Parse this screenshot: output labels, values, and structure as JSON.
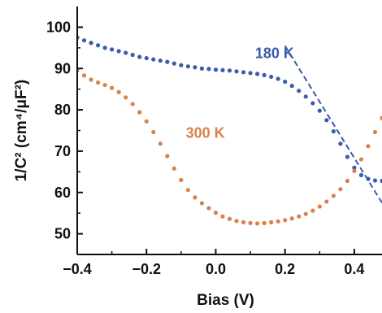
{
  "chart_data": {
    "type": "scatter",
    "xlabel": "Bias (V)",
    "ylabel": "1/C² (cm⁴/μF²)",
    "xlim": [
      -0.4,
      0.48
    ],
    "ylim": [
      45,
      105
    ],
    "x_ticks": [
      "−0.4",
      "−0.2",
      "0.0",
      "0.2",
      "0.4"
    ],
    "x_tick_values": [
      -0.4,
      -0.2,
      0.0,
      0.2,
      0.4
    ],
    "y_ticks": [
      "50",
      "60",
      "70",
      "80",
      "90",
      "100"
    ],
    "y_tick_values": [
      50,
      60,
      70,
      80,
      90,
      100
    ],
    "grid": false,
    "series": [
      {
        "name": "180 K",
        "color": "#3b5bab",
        "x": [
          -0.4,
          -0.38,
          -0.36,
          -0.34,
          -0.32,
          -0.3,
          -0.28,
          -0.26,
          -0.24,
          -0.22,
          -0.2,
          -0.18,
          -0.16,
          -0.14,
          -0.12,
          -0.1,
          -0.08,
          -0.06,
          -0.04,
          -0.02,
          0.0,
          0.02,
          0.04,
          0.06,
          0.08,
          0.1,
          0.12,
          0.14,
          0.16,
          0.18,
          0.2,
          0.22,
          0.24,
          0.26,
          0.28,
          0.3,
          0.32,
          0.34,
          0.36,
          0.38,
          0.4,
          0.42,
          0.44,
          0.46,
          0.48
        ],
        "y": [
          97.5,
          96.8,
          96.2,
          95.6,
          95.0,
          94.6,
          94.2,
          93.8,
          93.3,
          92.8,
          92.5,
          92.2,
          91.9,
          91.6,
          91.2,
          90.8,
          90.5,
          90.3,
          90.0,
          89.9,
          89.7,
          89.6,
          89.5,
          89.3,
          89.1,
          88.9,
          88.7,
          88.4,
          88.0,
          87.5,
          86.8,
          85.8,
          84.6,
          83.2,
          81.6,
          79.8,
          77.5,
          74.8,
          71.8,
          68.6,
          66.0,
          64.2,
          63.3,
          62.9,
          62.8
        ]
      },
      {
        "name": "300 K",
        "color": "#d9824a",
        "x": [
          -0.4,
          -0.38,
          -0.36,
          -0.34,
          -0.32,
          -0.3,
          -0.28,
          -0.26,
          -0.24,
          -0.22,
          -0.2,
          -0.18,
          -0.16,
          -0.14,
          -0.12,
          -0.1,
          -0.08,
          -0.06,
          -0.04,
          -0.02,
          0.0,
          0.02,
          0.04,
          0.06,
          0.08,
          0.1,
          0.12,
          0.14,
          0.16,
          0.18,
          0.2,
          0.22,
          0.24,
          0.26,
          0.28,
          0.3,
          0.32,
          0.34,
          0.36,
          0.38,
          0.4,
          0.42,
          0.44,
          0.46,
          0.48
        ],
        "y": [
          89.5,
          88.3,
          87.3,
          86.6,
          86.0,
          85.3,
          84.3,
          83.0,
          81.4,
          79.4,
          77.2,
          74.6,
          71.8,
          68.8,
          65.8,
          63.0,
          60.6,
          58.8,
          57.4,
          56.2,
          55.1,
          54.2,
          53.6,
          53.1,
          52.8,
          52.6,
          52.5,
          52.6,
          52.8,
          53.0,
          53.3,
          53.7,
          54.2,
          54.8,
          55.6,
          56.6,
          57.8,
          59.2,
          60.8,
          62.8,
          65.2,
          68.0,
          71.2,
          74.6,
          78.0
        ]
      }
    ],
    "annotations": [
      {
        "text": "180 K",
        "x": 0.17,
        "y": 92.5,
        "color": "#3b5bab"
      },
      {
        "text": "300 K",
        "x": -0.03,
        "y": 73.2,
        "color": "#d9824a"
      }
    ],
    "fit_line": {
      "style": "dashed",
      "color": "#3b5bab",
      "x": [
        0.2,
        0.48
      ],
      "y": [
        95.5,
        57.5
      ]
    }
  }
}
